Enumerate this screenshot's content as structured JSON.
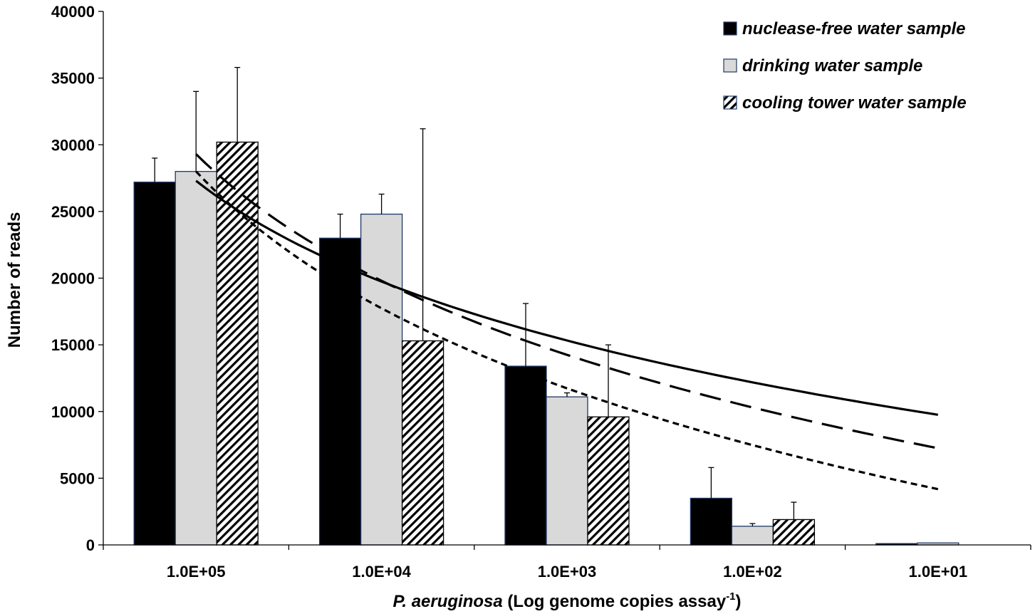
{
  "chart_data": {
    "type": "bar",
    "title": "",
    "xlabel_italic": "P. aeruginosa",
    "xlabel_rest": " (Log genome copies assay",
    "xlabel_sup": "-1",
    "xlabel_close": ")",
    "ylabel": "Number of reads",
    "ylim": [
      0,
      40000
    ],
    "yticks": [
      "0",
      "5000",
      "10000",
      "15000",
      "20000",
      "25000",
      "30000",
      "35000",
      "40000"
    ],
    "categories": [
      "1.0E+05",
      "1.0E+04",
      "1.0E+03",
      "1.0E+02",
      "1.0E+01"
    ],
    "series": [
      {
        "name": "nuclease-free water sample",
        "fill": "#000000",
        "pattern": "solid",
        "values": [
          27200,
          23000,
          13400,
          3500,
          100
        ],
        "errors": [
          1800,
          1800,
          4700,
          2300,
          0
        ],
        "trend": {
          "type": "log",
          "a": 27300,
          "b": 10900,
          "from": 0,
          "to": 4,
          "dash": ""
        }
      },
      {
        "name": "drinking water sample",
        "fill": "#d9d9d9",
        "pattern": "solid",
        "values": [
          28000,
          24800,
          11100,
          1400,
          150
        ],
        "errors": [
          6000,
          1500,
          300,
          200,
          0
        ],
        "trend": {
          "type": "log",
          "a": 29300,
          "b": 13700,
          "from": 0,
          "to": 4,
          "dash": "30 14"
        }
      },
      {
        "name": "cooling tower water sample",
        "fill": "#ffffff",
        "pattern": "hatch",
        "values": [
          30200,
          15300,
          9600,
          1900,
          0
        ],
        "errors": [
          5600,
          15900,
          5400,
          1300,
          0
        ],
        "trend": {
          "type": "log",
          "a": 28000,
          "b": 14800,
          "from": 0,
          "to": 4,
          "dash": "9 6"
        }
      }
    ],
    "legend_position": "top-right",
    "grid": false
  }
}
